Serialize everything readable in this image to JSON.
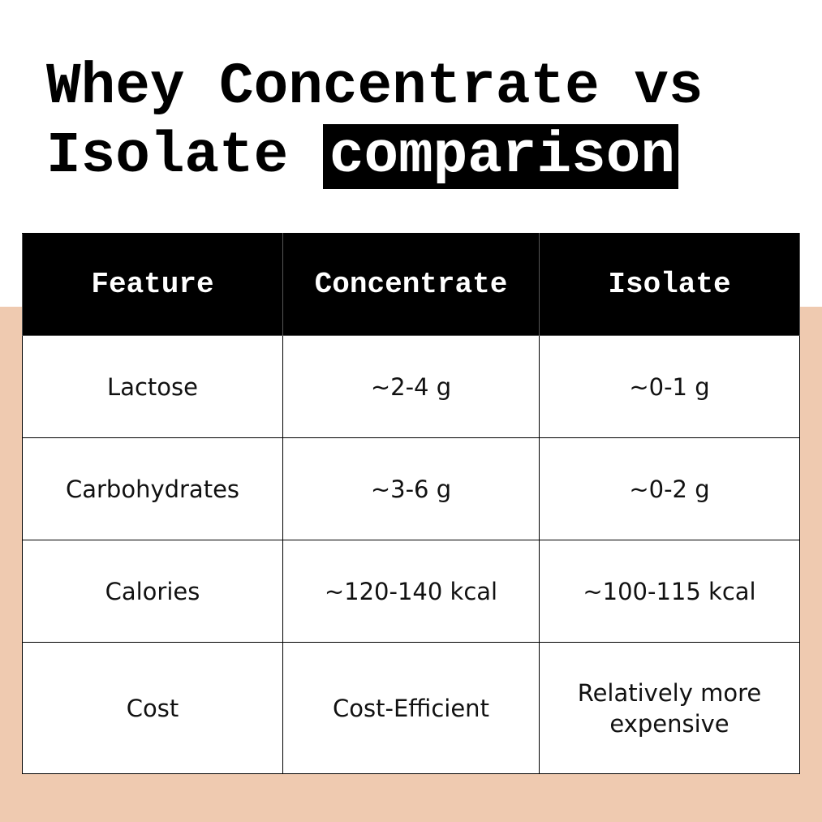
{
  "title": {
    "line1": "Whey Concentrate vs",
    "line2": "Isolate",
    "highlight": "comparison"
  },
  "table": {
    "header": [
      "Feature",
      "Concentrate",
      "Isolate"
    ],
    "rows": [
      [
        "Lactose",
        "~2-4 g",
        "~0-1 g"
      ],
      [
        "Carbohydrates",
        "~3-6 g",
        "~0-2 g"
      ],
      [
        "Calories",
        "~120-140 kcal",
        "~100-115 kcal"
      ],
      [
        "Cost",
        "Cost-Efficient",
        "Relatively more expensive"
      ]
    ]
  }
}
